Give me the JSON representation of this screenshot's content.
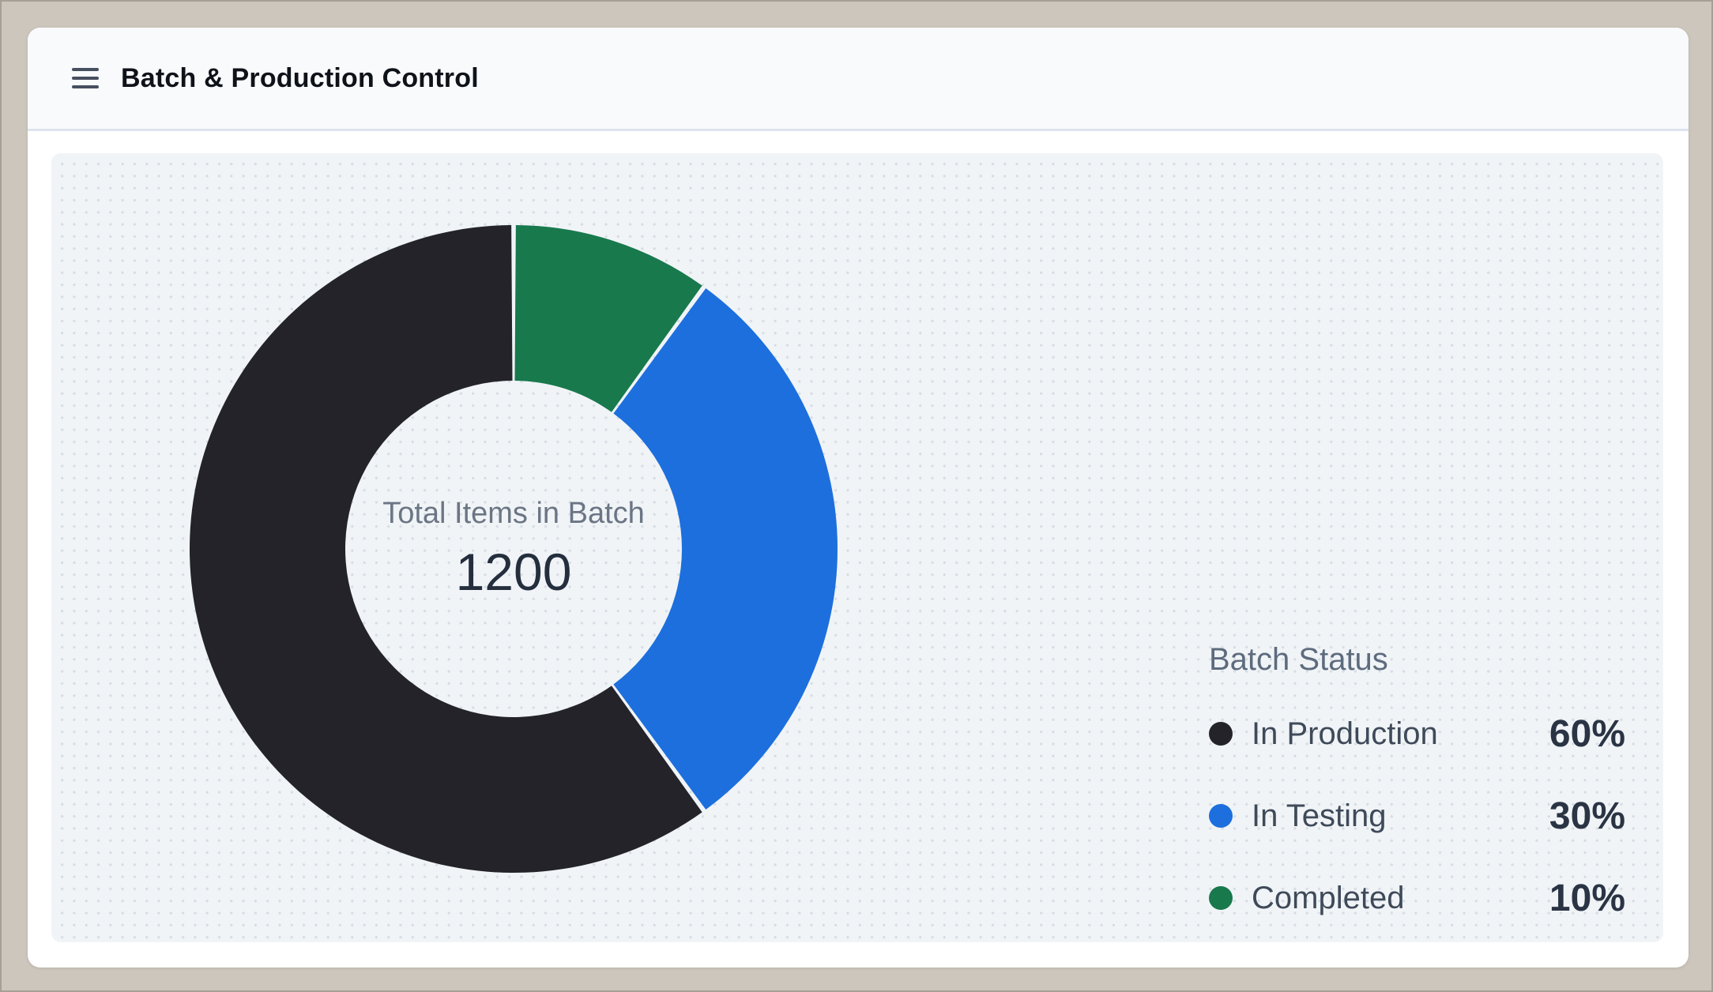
{
  "header": {
    "title": "Batch & Production Control",
    "menu_icon": "hamburger-icon"
  },
  "chart_data": {
    "type": "pie",
    "variant": "donut",
    "title": "Batch Status",
    "center_label": "Total Items in Batch",
    "center_value": "1200",
    "total": 1200,
    "segments": [
      {
        "label": "In Production",
        "value": 60,
        "percent_label": "60%",
        "color": "#232329"
      },
      {
        "label": "In Testing",
        "value": 30,
        "percent_label": "30%",
        "color": "#1d6fdd"
      },
      {
        "label": "Completed",
        "value": 10,
        "percent_label": "10%",
        "color": "#18794d"
      }
    ],
    "start_angle_deg": 0,
    "direction": "clockwise from 12 o'clock, segments drawn in reverse list order",
    "inner_radius_ratio": 0.52,
    "segment_gap_deg": 0.8,
    "legend_position": "right",
    "grid": "dotted background pattern"
  },
  "palette": {
    "frame": "#ccc6bc",
    "card": "#ffffff",
    "header_bg": "#f8fafc",
    "panel_bg": "#f0f4f7",
    "panel_dot": "#d7dde4",
    "text_dark": "#242e3d",
    "text_muted": "#6b7584"
  }
}
